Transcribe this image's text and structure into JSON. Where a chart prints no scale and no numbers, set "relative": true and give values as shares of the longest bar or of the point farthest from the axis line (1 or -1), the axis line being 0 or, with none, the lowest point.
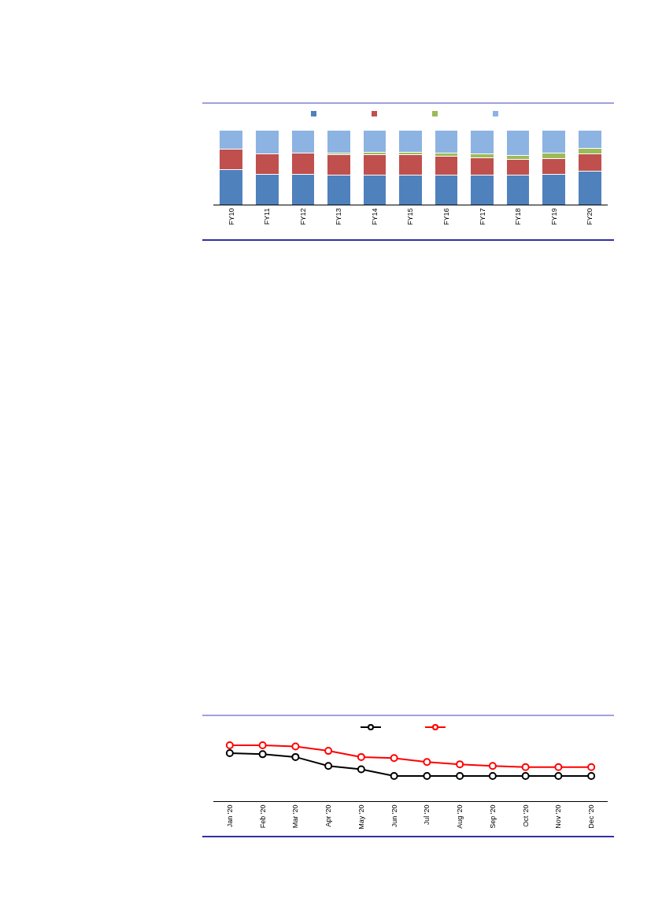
{
  "chart_data": [
    {
      "type": "bar",
      "stacked": true,
      "relative": true,
      "grid": false,
      "categories": [
        "FY10",
        "FY11",
        "FY12",
        "FY13",
        "FY14",
        "FY15",
        "FY16",
        "FY17",
        "FY18",
        "FY19",
        "FY20"
      ],
      "series": [
        {
          "color": "#4f81bd",
          "values": [
            0.47,
            0.41,
            0.41,
            0.4,
            0.4,
            0.4,
            0.4,
            0.39,
            0.39,
            0.41,
            0.45
          ]
        },
        {
          "color": "#c0504d",
          "values": [
            0.27,
            0.27,
            0.28,
            0.27,
            0.27,
            0.27,
            0.25,
            0.24,
            0.22,
            0.21,
            0.23
          ]
        },
        {
          "color": "#9bbb59",
          "values": [
            0,
            0,
            0,
            0.02,
            0.03,
            0.03,
            0.04,
            0.05,
            0.05,
            0.07,
            0.07
          ]
        },
        {
          "color": "#8db3e2",
          "values": [
            0.26,
            0.32,
            0.31,
            0.31,
            0.3,
            0.3,
            0.31,
            0.32,
            0.34,
            0.31,
            0.25
          ]
        }
      ]
    },
    {
      "type": "line",
      "relative": true,
      "grid": false,
      "marker": "circle",
      "line_style": "solid",
      "categories": [
        "Jan '20",
        "Feb '20",
        "Mar '20",
        "Apr '20",
        "May '20",
        "Jun '20",
        "Jul '20",
        "Aug '20",
        "Sep '20",
        "Oct '20",
        "Nov '20",
        "Dec '20"
      ],
      "series": [
        {
          "color": "#000000",
          "values": [
            0.86,
            0.84,
            0.79,
            0.63,
            0.57,
            0.45,
            0.45,
            0.45,
            0.45,
            0.45,
            0.45,
            0.45
          ]
        },
        {
          "color": "#ff0000",
          "values": [
            1.0,
            1.0,
            0.98,
            0.9,
            0.79,
            0.77,
            0.7,
            0.66,
            0.63,
            0.61,
            0.61,
            0.61
          ]
        }
      ]
    }
  ]
}
